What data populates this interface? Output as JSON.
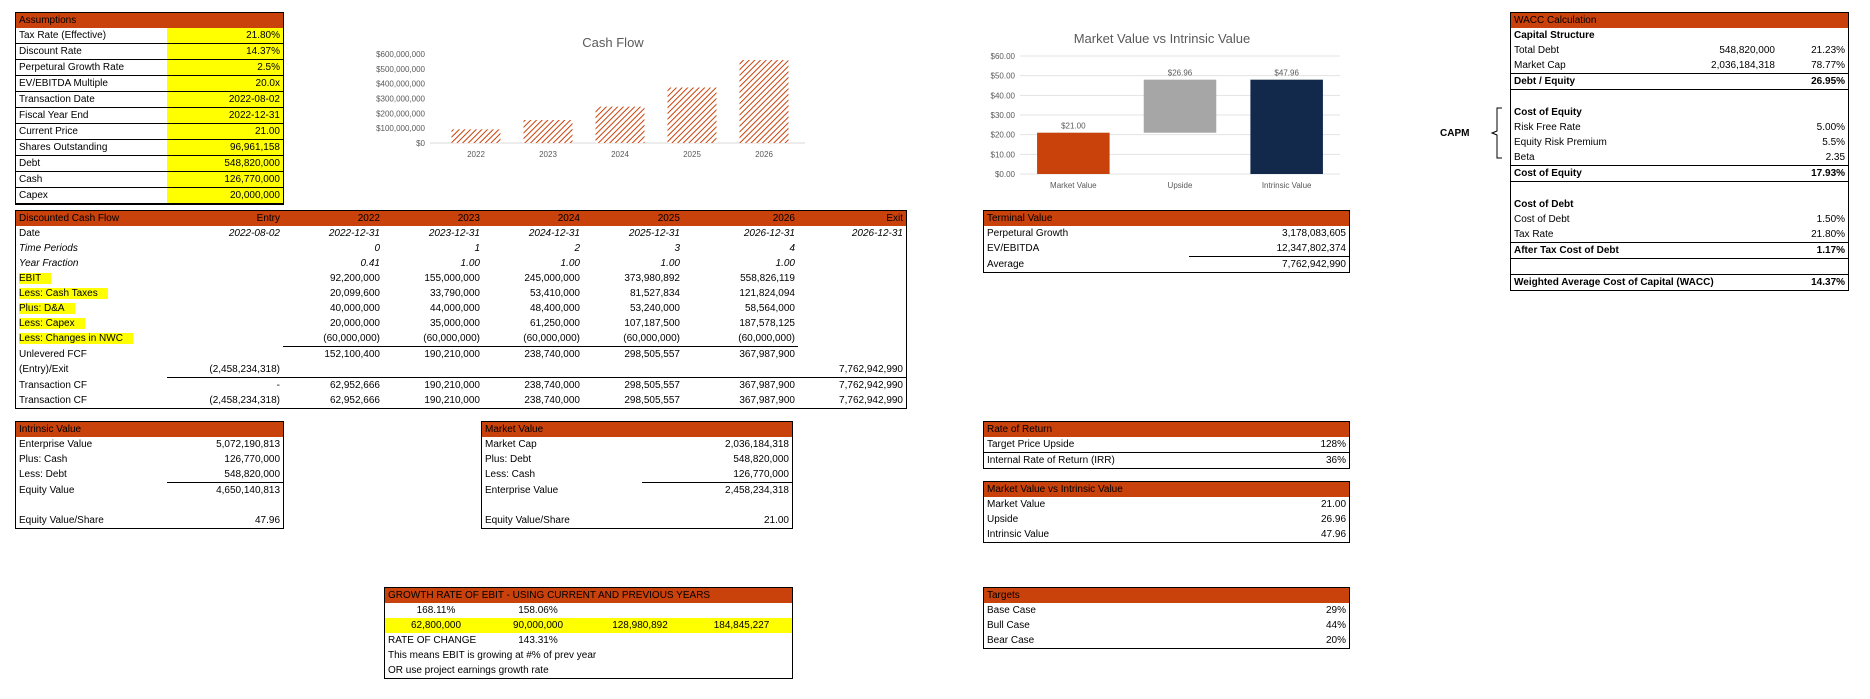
{
  "assumptions": {
    "title": "Assumptions",
    "rows": [
      {
        "label": "Tax Rate (Effective)",
        "value": "21.80%"
      },
      {
        "label": "Discount Rate",
        "value": "14.37%"
      },
      {
        "label": "Perpetural Growth Rate",
        "value": "2.5%"
      },
      {
        "label": "EV/EBITDA Multiple",
        "value": "20.0x"
      },
      {
        "label": "Transaction Date",
        "value": "2022-08-02"
      },
      {
        "label": "Fiscal Year End",
        "value": "2022-12-31"
      },
      {
        "label": "Current Price",
        "value": "21.00"
      },
      {
        "label": "Shares Outstanding",
        "value": "96,961,158"
      },
      {
        "label": "Debt",
        "value": "548,820,000"
      },
      {
        "label": "Cash",
        "value": "126,770,000"
      },
      {
        "label": "Capex",
        "value": "20,000,000"
      }
    ]
  },
  "dcf": {
    "headers": [
      "Discounted Cash Flow",
      "Entry",
      "2022",
      "2023",
      "2024",
      "2025",
      "2026",
      "Exit"
    ],
    "rows": [
      {
        "cells": [
          "Date",
          "2022-08-02",
          "2022-12-31",
          "2023-12-31",
          "2024-12-31",
          "2025-12-31",
          "2026-12-31",
          "2026-12-31"
        ]
      },
      {
        "cells": [
          "Time Periods",
          "",
          "0",
          "1",
          "2",
          "3",
          "4",
          ""
        ]
      },
      {
        "cells": [
          "Year Fraction",
          "",
          "0.41",
          "1.00",
          "1.00",
          "1.00",
          "1.00",
          ""
        ]
      },
      {
        "cells": [
          "EBIT",
          "",
          "92,200,000",
          "155,000,000",
          "245,000,000",
          "373,980,892",
          "558,826,119",
          ""
        ]
      },
      {
        "cells": [
          "Less: Cash Taxes",
          "",
          "20,099,600",
          "33,790,000",
          "53,410,000",
          "81,527,834",
          "121,824,094",
          ""
        ]
      },
      {
        "cells": [
          "Plus: D&A",
          "",
          "40,000,000",
          "44,000,000",
          "48,400,000",
          "53,240,000",
          "58,564,000",
          ""
        ]
      },
      {
        "cells": [
          "Less: Capex",
          "",
          "20,000,000",
          "35,000,000",
          "61,250,000",
          "107,187,500",
          "187,578,125",
          ""
        ]
      },
      {
        "cells": [
          "Less: Changes in NWC",
          "",
          "(60,000,000)",
          "(60,000,000)",
          "(60,000,000)",
          "(60,000,000)",
          "(60,000,000)",
          ""
        ]
      },
      {
        "cells": [
          "Unlevered FCF",
          "",
          "152,100,400",
          "190,210,000",
          "238,740,000",
          "298,505,557",
          "367,987,900",
          ""
        ]
      },
      {
        "cells": [
          "(Entry)/Exit",
          "(2,458,234,318)",
          "",
          "",
          "",
          "",
          "",
          "7,762,942,990"
        ]
      },
      {
        "cells": [
          "Transaction CF",
          "-",
          "62,952,666",
          "190,210,000",
          "238,740,000",
          "298,505,557",
          "367,987,900",
          "7,762,942,990"
        ]
      },
      {
        "cells": [
          "Transaction CF",
          "(2,458,234,318)",
          "62,952,666",
          "190,210,000",
          "238,740,000",
          "298,505,557",
          "367,987,900",
          "7,762,942,990"
        ]
      }
    ]
  },
  "intrinsic_value": {
    "title": "Intrinsic Value",
    "rows": [
      {
        "label": "Enterprise Value",
        "value": "5,072,190,813"
      },
      {
        "label": "Plus: Cash",
        "value": "126,770,000"
      },
      {
        "label": "Less: Debt",
        "value": "548,820,000"
      },
      {
        "label": "Equity Value",
        "value": "4,650,140,813"
      },
      {
        "label": "",
        "value": ""
      },
      {
        "label": "Equity Value/Share",
        "value": "47.96"
      }
    ]
  },
  "market_value": {
    "title": "Market Value",
    "rows": [
      {
        "label": "Market Cap",
        "value": "2,036,184,318"
      },
      {
        "label": "Plus: Debt",
        "value": "548,820,000"
      },
      {
        "label": "Less: Cash",
        "value": "126,770,000"
      },
      {
        "label": "Enterprise Value",
        "value": "2,458,234,318"
      },
      {
        "label": "",
        "value": ""
      },
      {
        "label": "Equity Value/Share",
        "value": "21.00"
      }
    ]
  },
  "growth": {
    "title": "GROWTH RATE OF EBIT - USING CURRENT AND PREVIOUS YEARS",
    "pct1": "168.11%",
    "pct2": "158.06%",
    "values": [
      "62,800,000",
      "90,000,000",
      "128,980,892",
      "184,845,227"
    ],
    "roc_label": "RATE OF CHANGE",
    "roc_value": "143.31%",
    "note1": "This means EBIT is growing at #% of prev year",
    "note2": "OR use project earnings growth rate"
  },
  "terminal_value": {
    "title": "Terminal Value",
    "rows": [
      {
        "label": "Perpetural Growth",
        "value": "3,178,083,605"
      },
      {
        "label": "EV/EBITDA",
        "value": "12,347,802,374"
      },
      {
        "label": "Average",
        "value": "7,762,942,990"
      }
    ]
  },
  "rate_of_return": {
    "title": "Rate of Return",
    "rows": [
      {
        "label": "Target Price Upside",
        "value": "128%"
      },
      {
        "label": "Internal Rate of Return (IRR)",
        "value": "36%"
      }
    ]
  },
  "mv_vs_iv_table": {
    "title": "Market Value vs Intrinsic Value",
    "rows": [
      {
        "label": "Market Value",
        "value": "21.00"
      },
      {
        "label": "Upside",
        "value": "26.96"
      },
      {
        "label": "Intrinsic Value",
        "value": "47.96"
      }
    ]
  },
  "targets": {
    "title": "Targets",
    "rows": [
      {
        "label": "Base Case",
        "value": "29%"
      },
      {
        "label": "Bull Case",
        "value": "44%"
      },
      {
        "label": "Bear Case",
        "value": "20%"
      }
    ]
  },
  "wacc": {
    "title": "WACC Calculation",
    "capm_label": "CAPM",
    "capital_structure": "Capital Structure",
    "total_debt": {
      "label": "Total Debt",
      "amount": "548,820,000",
      "pct": "21.23%"
    },
    "market_cap": {
      "label": "Market Cap",
      "amount": "2,036,184,318",
      "pct": "78.77%"
    },
    "debt_equity": {
      "label": "Debt / Equity",
      "value": "26.95%"
    },
    "cost_of_equity_head": "Cost of Equity",
    "risk_free": {
      "label": "Risk Free Rate",
      "value": "5.00%"
    },
    "erp": {
      "label": "Equity Risk Premium",
      "value": "5.5%"
    },
    "beta": {
      "label": "Beta",
      "value": "2.35"
    },
    "cost_of_equity": {
      "label": "Cost of Equity",
      "value": "17.93%"
    },
    "cost_of_debt_head": "Cost of Debt",
    "cod": {
      "label": "Cost of Debt",
      "value": "1.50%"
    },
    "tax": {
      "label": "Tax Rate",
      "value": "21.80%"
    },
    "after_tax": {
      "label": "After Tax Cost of Debt",
      "value": "1.17%"
    },
    "wacc_row": {
      "label": "Weighted Average Cost of Capital (WACC)",
      "value": "14.37%"
    }
  },
  "colors": {
    "accent": "#C9410B",
    "highlight": "#FFFF00",
    "navy": "#13294B",
    "gray": "#A6A6A6"
  },
  "chart_data": [
    {
      "type": "bar",
      "title": "Cash Flow",
      "categories": [
        "2022",
        "2023",
        "2024",
        "2025",
        "2026"
      ],
      "values": [
        92000000,
        155000000,
        245000000,
        374000000,
        559000000
      ],
      "yticks": [
        "$0",
        "$100,000,000",
        "$200,000,000",
        "$300,000,000",
        "$400,000,000",
        "$500,000,000",
        "$600,000,000"
      ],
      "ylim": [
        0,
        600000000
      ],
      "fill": "hatched",
      "grid": false
    },
    {
      "type": "bar",
      "subtype": "waterfall",
      "title": "Market Value vs Intrinsic Value",
      "categories": [
        "Market Value",
        "Upside",
        "Intrinsic Value"
      ],
      "values": [
        21.0,
        26.96,
        47.96
      ],
      "data_labels": [
        "$21.00",
        "$26.96",
        "$47.96"
      ],
      "yticks": [
        "$0.00",
        "$10.00",
        "$20.00",
        "$30.00",
        "$40.00",
        "$50.00",
        "$60.00"
      ],
      "ylim": [
        0,
        60
      ],
      "colors": [
        "#C9410B",
        "#A6A6A6",
        "#13294B"
      ],
      "grid": true
    }
  ]
}
